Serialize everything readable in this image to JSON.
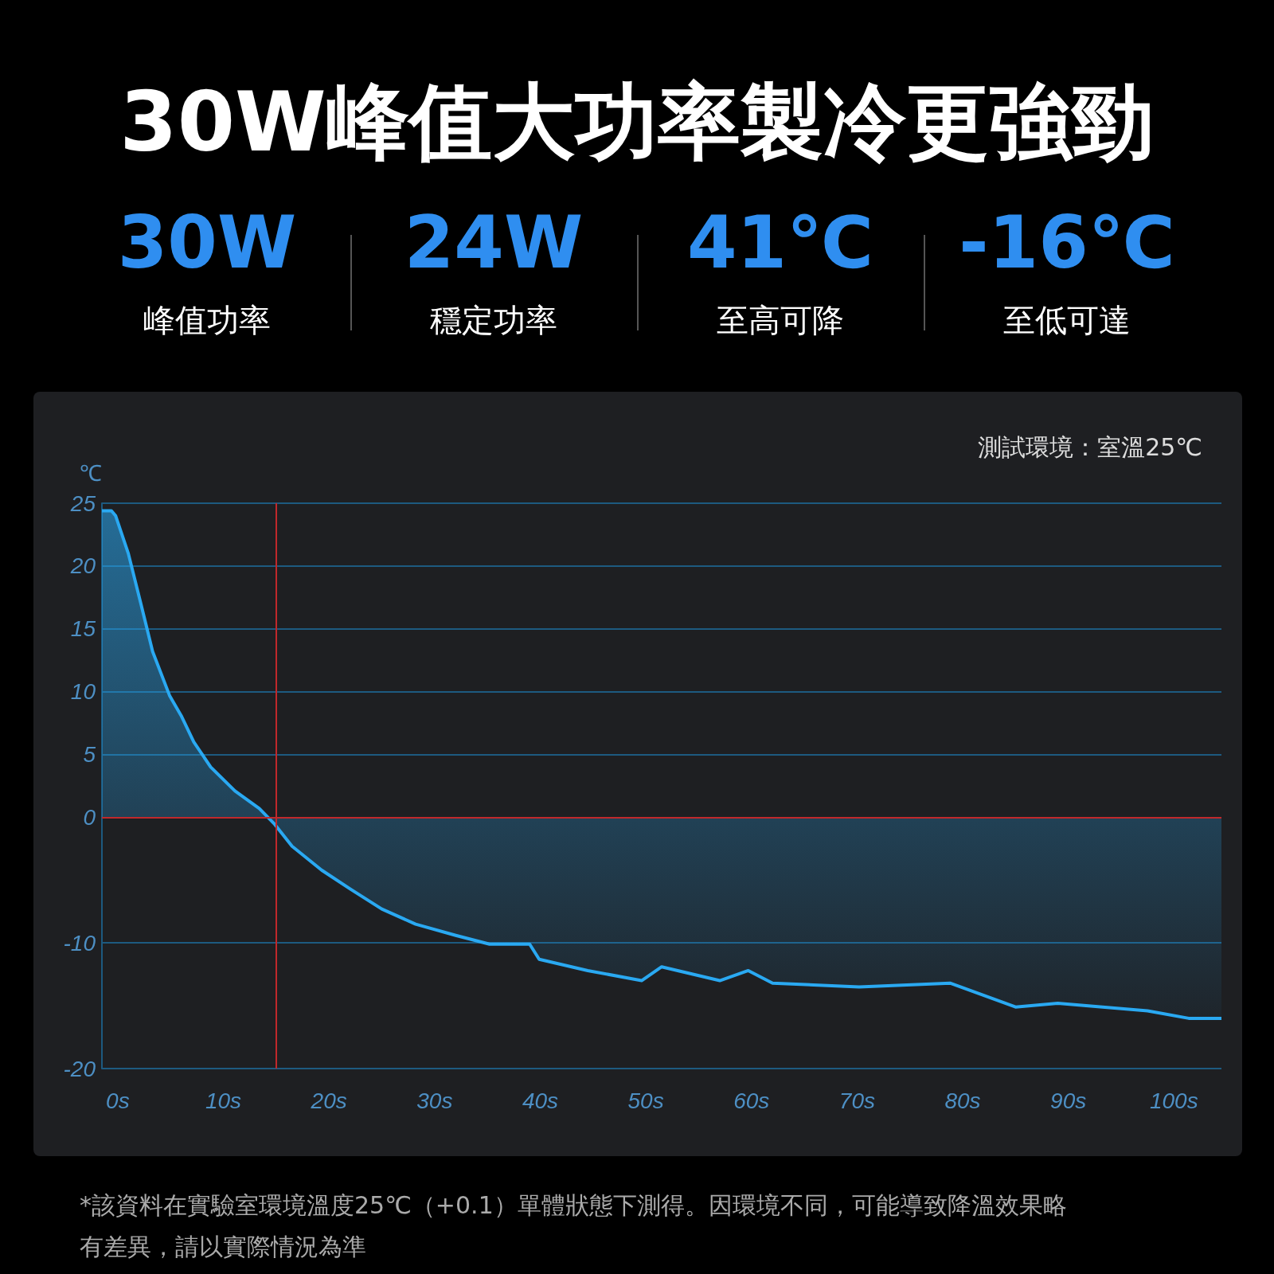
{
  "chart_data": {
    "type": "area",
    "title": "30W峰值大功率製冷更強勁",
    "ylabel": "℃",
    "annotations": [
      "30W",
      "峰值功率",
      "24W",
      "穩定功率",
      "41℃",
      "至高可降",
      "-16℃",
      "至低可達",
      "測試環境：室溫25℃",
      "*該資料在實驗室環境溫度25℃（+0.1）單體狀態下測得。因環境不同，可能導致降溫效果略有差異，請以實際情況為準"
    ],
    "x": [
      -1.5,
      -0.6,
      -0.2,
      1,
      2.1,
      3.3,
      4.9,
      6,
      7.2,
      8.8,
      11.1,
      13.4,
      14.8,
      16.5,
      19.3,
      22,
      25,
      28.2,
      32,
      35.2,
      39,
      39.9,
      44.5,
      49.6,
      51.5,
      57,
      59.7,
      62,
      70.2,
      78.8,
      85,
      89,
      97.5,
      101.4,
      104.5
    ],
    "series": [
      {
        "color": "#2aa9f2",
        "values": [
          24.4,
          24.4,
          24,
          21,
          17.3,
          13.2,
          9.7,
          8.1,
          6,
          4,
          2.1,
          0.7,
          -0.5,
          -2.3,
          -4.2,
          -5.7,
          -7.3,
          -8.5,
          -9.4,
          -10.1,
          -10.1,
          -11.3,
          -12.2,
          -13,
          -11.9,
          -13,
          -12.2,
          -13.2,
          -13.5,
          -13.2,
          -15.1,
          -14.8,
          -15.4,
          -16,
          -16
        ]
      }
    ],
    "xlim": [
      -1.5,
      104.5
    ],
    "xticks": [
      {
        "value": 0,
        "label": "0s"
      },
      {
        "value": 10,
        "label": "10s"
      },
      {
        "value": 20,
        "label": "20s"
      },
      {
        "value": 30,
        "label": "30s"
      },
      {
        "value": 40,
        "label": "40s"
      },
      {
        "value": 50,
        "label": "50s"
      },
      {
        "value": 60,
        "label": "60s"
      },
      {
        "value": 70,
        "label": "70s"
      },
      {
        "value": 80,
        "label": "80s"
      },
      {
        "value": 90,
        "label": "90s"
      },
      {
        "value": 100,
        "label": "100s"
      }
    ],
    "ylim": [
      -20,
      25
    ],
    "yticks": [
      -20,
      -10,
      0,
      5,
      10,
      15,
      20,
      25
    ],
    "ref_lines": [
      {
        "axis": "x",
        "value": 15,
        "color": "#c0282b"
      },
      {
        "axis": "y",
        "value": 0,
        "color": "#c0282b"
      }
    ],
    "grid": "y",
    "marker": "none",
    "line_style": "solid"
  }
}
